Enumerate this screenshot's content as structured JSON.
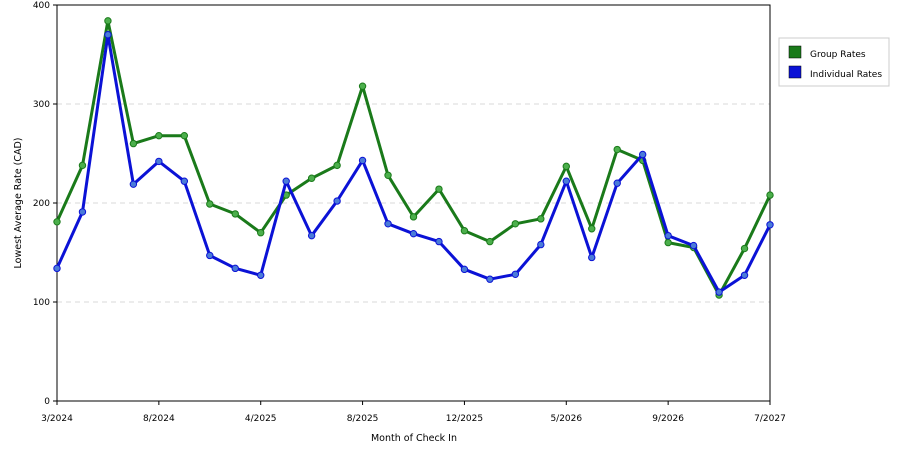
{
  "chart_data": {
    "type": "line",
    "xlabel": "Month of Check In",
    "ylabel": "Lowest Average Rate (CAD)",
    "ylim": [
      0,
      400
    ],
    "yticks": [
      0,
      100,
      200,
      300,
      400
    ],
    "grid": true,
    "legend_position": "right",
    "x_tick_labels": [
      "3/2024",
      "8/2024",
      "4/2025",
      "8/2025",
      "12/2025",
      "5/2026",
      "9/2026",
      "7/2027"
    ],
    "x_tick_index": [
      0,
      4,
      8,
      12,
      16,
      20,
      24,
      28
    ],
    "series": [
      {
        "name": "Group Rates",
        "color": "#1a7a1a",
        "marker_color": "#4caf4c",
        "values": [
          181,
          238,
          384,
          260,
          268,
          268,
          199,
          189,
          170,
          208,
          225,
          238,
          318,
          228,
          186,
          214,
          172,
          161,
          179,
          184,
          237,
          174,
          254,
          243,
          160,
          155,
          107,
          154,
          208
        ]
      },
      {
        "name": "Individual Rates",
        "color": "#0b12d6",
        "marker_color": "#4a7bd8",
        "values": [
          134,
          191,
          370,
          219,
          242,
          222,
          147,
          134,
          127,
          222,
          167,
          202,
          243,
          179,
          169,
          161,
          133,
          123,
          128,
          158,
          222,
          145,
          220,
          249,
          167,
          157,
          110,
          127,
          178
        ]
      }
    ]
  }
}
